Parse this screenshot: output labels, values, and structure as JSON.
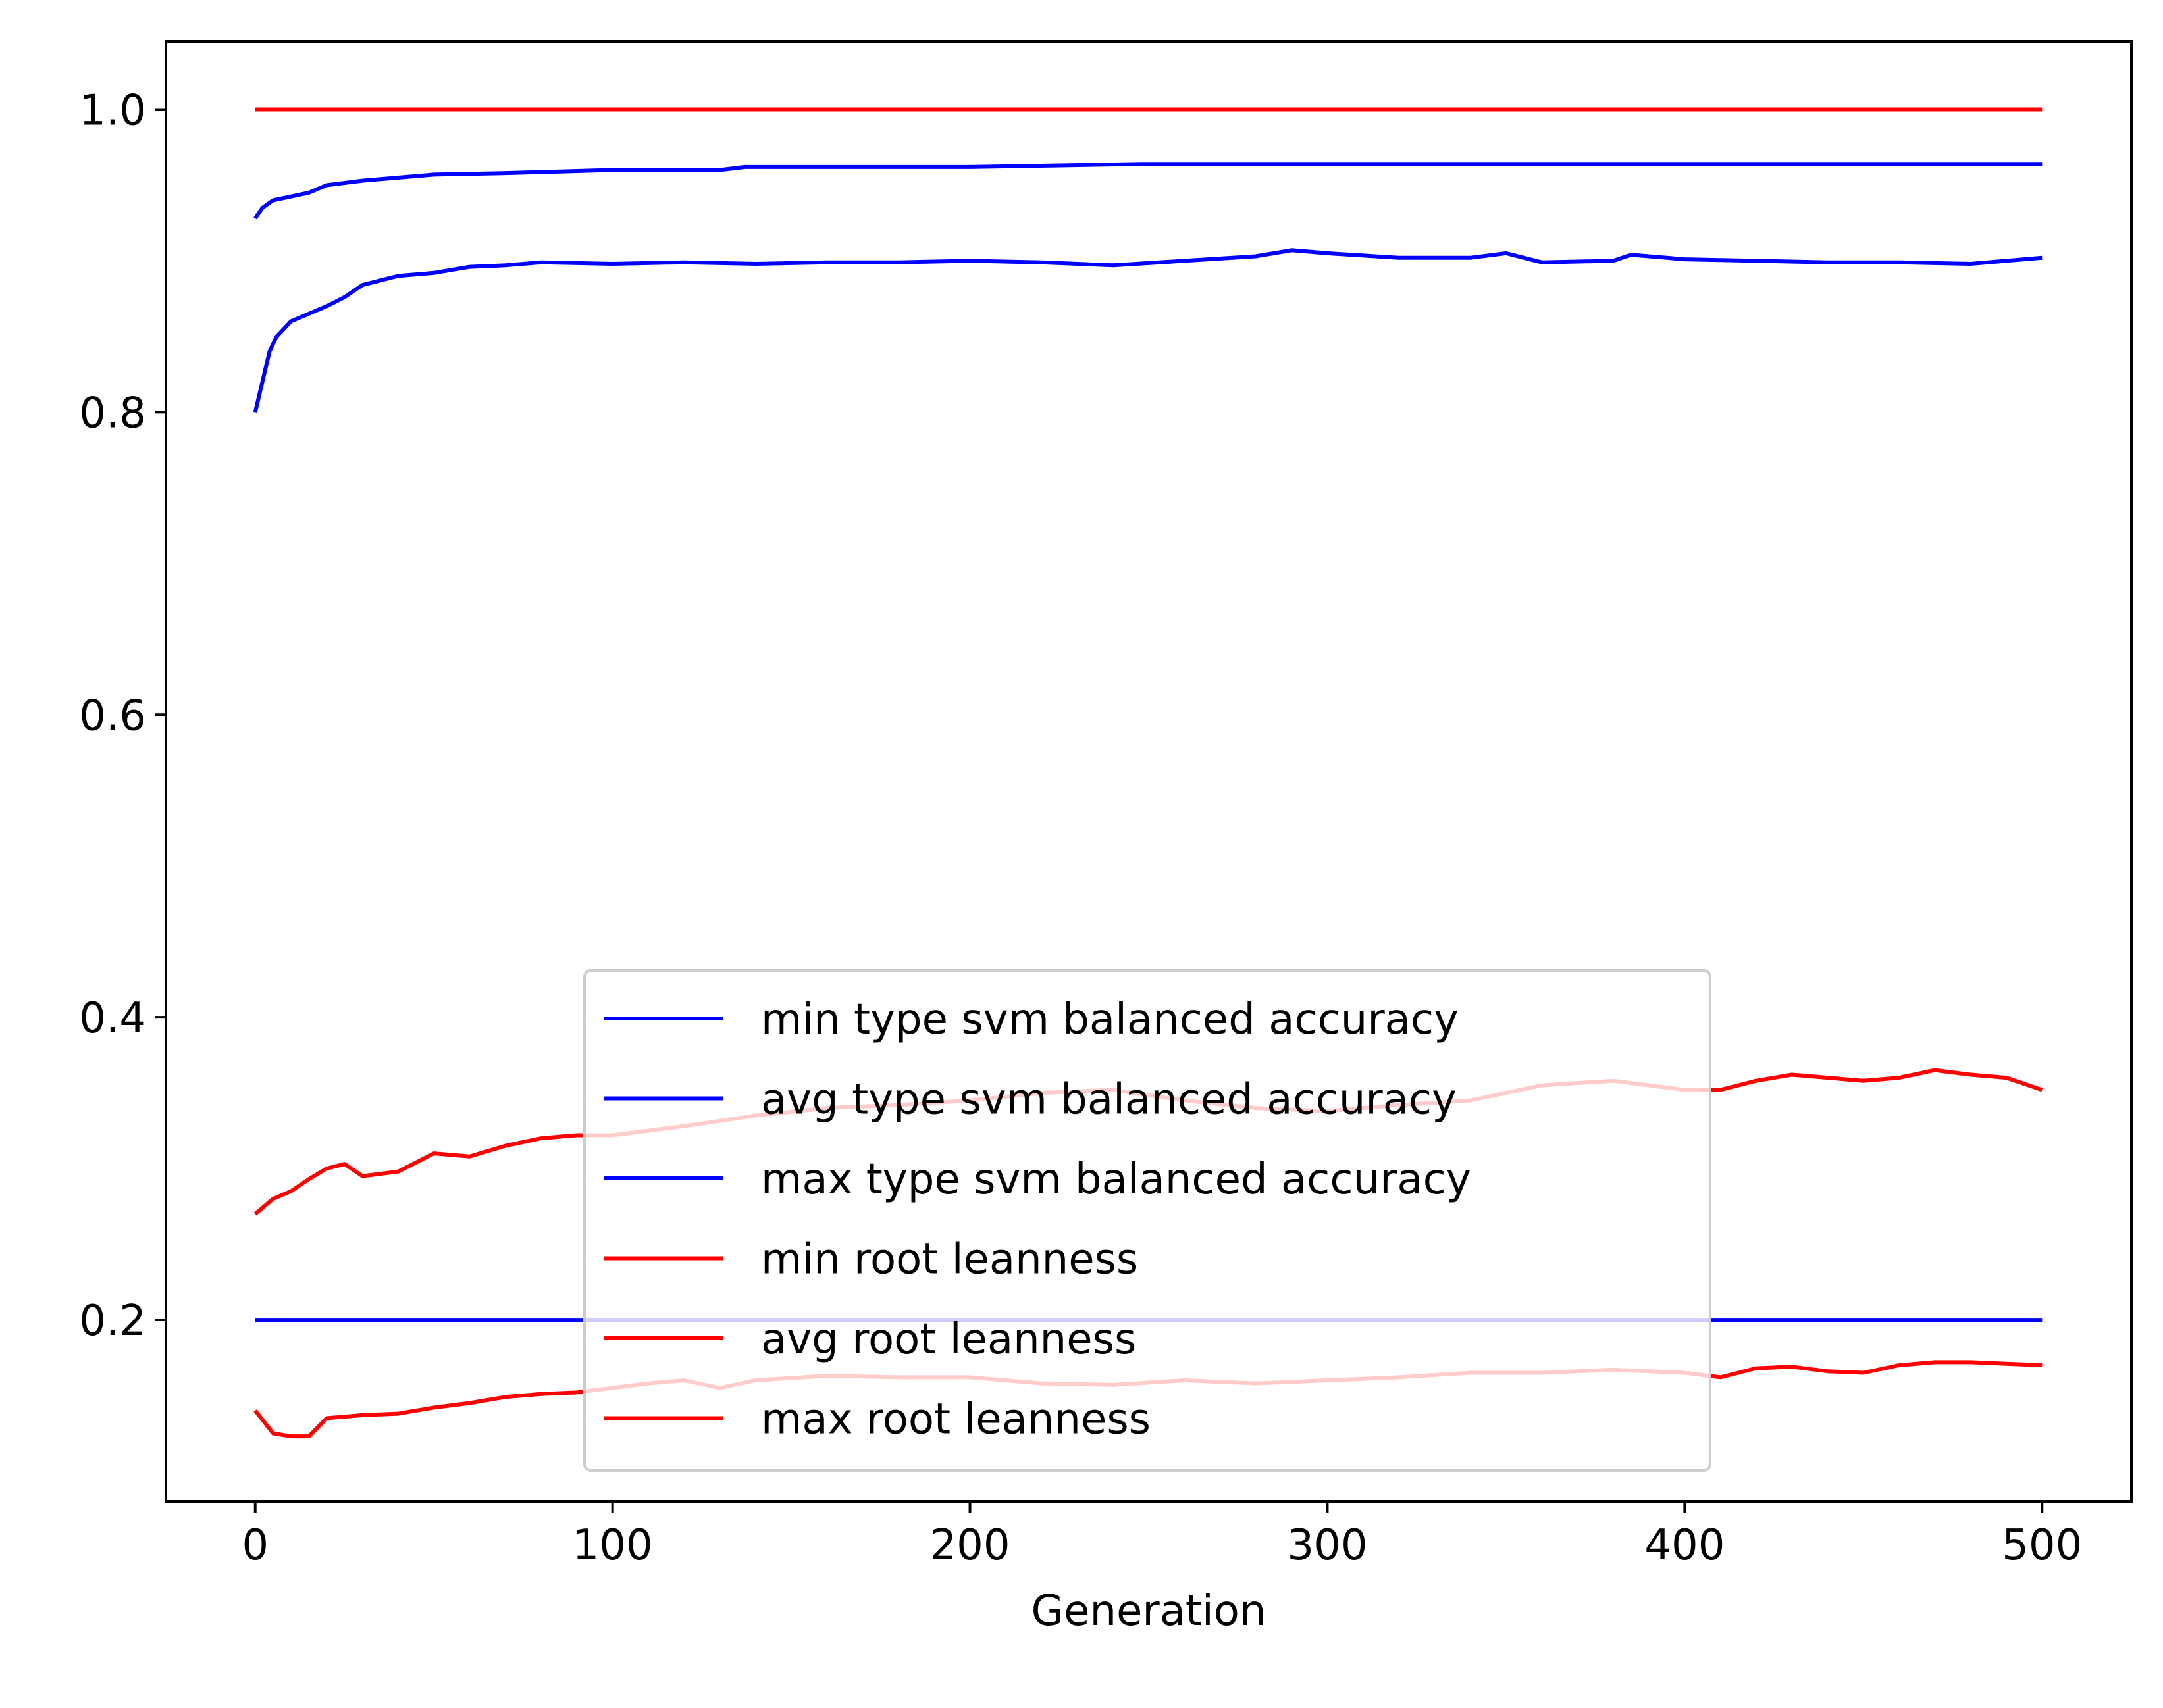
{
  "chart_data": {
    "type": "line",
    "title": "",
    "xlabel": "Generation",
    "ylabel": "",
    "xlim": [
      -25,
      525
    ],
    "ylim": [
      0.08,
      1.045
    ],
    "x_ticks": [
      0,
      100,
      200,
      300,
      400,
      500
    ],
    "y_ticks": [
      0.2,
      0.4,
      0.6,
      0.8,
      1.0
    ],
    "x_tick_labels": [
      "0",
      "100",
      "200",
      "300",
      "400",
      "500"
    ],
    "y_tick_labels": [
      "0.2",
      "0.4",
      "0.6",
      "0.8",
      "1.0"
    ],
    "grid": false,
    "legend_position": "lower center",
    "series": [
      {
        "name": "min type svm balanced accuracy",
        "color": "#0000ff",
        "points": [
          [
            0,
            0.2
          ],
          [
            500,
            0.2
          ]
        ]
      },
      {
        "name": "avg type svm balanced accuracy",
        "color": "#0000ff",
        "points": [
          [
            0,
            0.8
          ],
          [
            2,
            0.82
          ],
          [
            4,
            0.84
          ],
          [
            6,
            0.85
          ],
          [
            10,
            0.86
          ],
          [
            15,
            0.865
          ],
          [
            20,
            0.87
          ],
          [
            25,
            0.876
          ],
          [
            30,
            0.884
          ],
          [
            40,
            0.89
          ],
          [
            50,
            0.892
          ],
          [
            60,
            0.896
          ],
          [
            70,
            0.897
          ],
          [
            80,
            0.899
          ],
          [
            100,
            0.898
          ],
          [
            120,
            0.899
          ],
          [
            140,
            0.898
          ],
          [
            160,
            0.899
          ],
          [
            180,
            0.899
          ],
          [
            200,
            0.9
          ],
          [
            220,
            0.899
          ],
          [
            240,
            0.897
          ],
          [
            260,
            0.9
          ],
          [
            280,
            0.903
          ],
          [
            290,
            0.907
          ],
          [
            300,
            0.905
          ],
          [
            320,
            0.902
          ],
          [
            340,
            0.902
          ],
          [
            350,
            0.905
          ],
          [
            360,
            0.899
          ],
          [
            380,
            0.9
          ],
          [
            385,
            0.904
          ],
          [
            400,
            0.901
          ],
          [
            420,
            0.9
          ],
          [
            440,
            0.899
          ],
          [
            460,
            0.899
          ],
          [
            480,
            0.898
          ],
          [
            500,
            0.902
          ]
        ]
      },
      {
        "name": "max type svm balanced accuracy",
        "color": "#0000ff",
        "points": [
          [
            0,
            0.928
          ],
          [
            2,
            0.935
          ],
          [
            5,
            0.94
          ],
          [
            15,
            0.945
          ],
          [
            20,
            0.95
          ],
          [
            30,
            0.953
          ],
          [
            40,
            0.955
          ],
          [
            50,
            0.957
          ],
          [
            70,
            0.958
          ],
          [
            100,
            0.96
          ],
          [
            130,
            0.96
          ],
          [
            137,
            0.962
          ],
          [
            200,
            0.962
          ],
          [
            248,
            0.964
          ],
          [
            500,
            0.964
          ]
        ]
      },
      {
        "name": "min root leanness",
        "color": "#ff0000",
        "points": [
          [
            0,
            0.14
          ],
          [
            5,
            0.125
          ],
          [
            10,
            0.123
          ],
          [
            15,
            0.123
          ],
          [
            20,
            0.135
          ],
          [
            30,
            0.137
          ],
          [
            40,
            0.138
          ],
          [
            50,
            0.142
          ],
          [
            60,
            0.145
          ],
          [
            70,
            0.149
          ],
          [
            80,
            0.151
          ],
          [
            90,
            0.152
          ],
          [
            100,
            0.155
          ],
          [
            110,
            0.158
          ],
          [
            120,
            0.16
          ],
          [
            130,
            0.155
          ],
          [
            140,
            0.16
          ],
          [
            160,
            0.163
          ],
          [
            180,
            0.162
          ],
          [
            200,
            0.162
          ],
          [
            220,
            0.158
          ],
          [
            240,
            0.157
          ],
          [
            260,
            0.16
          ],
          [
            280,
            0.158
          ],
          [
            300,
            0.16
          ],
          [
            320,
            0.162
          ],
          [
            340,
            0.165
          ],
          [
            360,
            0.165
          ],
          [
            380,
            0.167
          ],
          [
            400,
            0.165
          ],
          [
            410,
            0.162
          ],
          [
            420,
            0.168
          ],
          [
            430,
            0.169
          ],
          [
            440,
            0.166
          ],
          [
            450,
            0.165
          ],
          [
            460,
            0.17
          ],
          [
            470,
            0.172
          ],
          [
            480,
            0.172
          ],
          [
            490,
            0.171
          ],
          [
            500,
            0.17
          ]
        ]
      },
      {
        "name": "avg root leanness",
        "color": "#ff0000",
        "points": [
          [
            0,
            0.27
          ],
          [
            5,
            0.28
          ],
          [
            10,
            0.285
          ],
          [
            15,
            0.293
          ],
          [
            20,
            0.3
          ],
          [
            25,
            0.303
          ],
          [
            30,
            0.295
          ],
          [
            40,
            0.298
          ],
          [
            50,
            0.31
          ],
          [
            60,
            0.308
          ],
          [
            70,
            0.315
          ],
          [
            80,
            0.32
          ],
          [
            90,
            0.322
          ],
          [
            100,
            0.322
          ],
          [
            120,
            0.328
          ],
          [
            140,
            0.335
          ],
          [
            160,
            0.34
          ],
          [
            180,
            0.342
          ],
          [
            200,
            0.345
          ],
          [
            220,
            0.35
          ],
          [
            240,
            0.352
          ],
          [
            260,
            0.345
          ],
          [
            280,
            0.34
          ],
          [
            300,
            0.338
          ],
          [
            320,
            0.342
          ],
          [
            340,
            0.345
          ],
          [
            360,
            0.355
          ],
          [
            380,
            0.358
          ],
          [
            400,
            0.352
          ],
          [
            410,
            0.352
          ],
          [
            420,
            0.358
          ],
          [
            430,
            0.362
          ],
          [
            440,
            0.36
          ],
          [
            450,
            0.358
          ],
          [
            460,
            0.36
          ],
          [
            470,
            0.365
          ],
          [
            480,
            0.362
          ],
          [
            490,
            0.36
          ],
          [
            500,
            0.352
          ]
        ]
      },
      {
        "name": "max root leanness",
        "color": "#ff0000",
        "points": [
          [
            0,
            1.0
          ],
          [
            500,
            1.0
          ]
        ]
      }
    ]
  }
}
